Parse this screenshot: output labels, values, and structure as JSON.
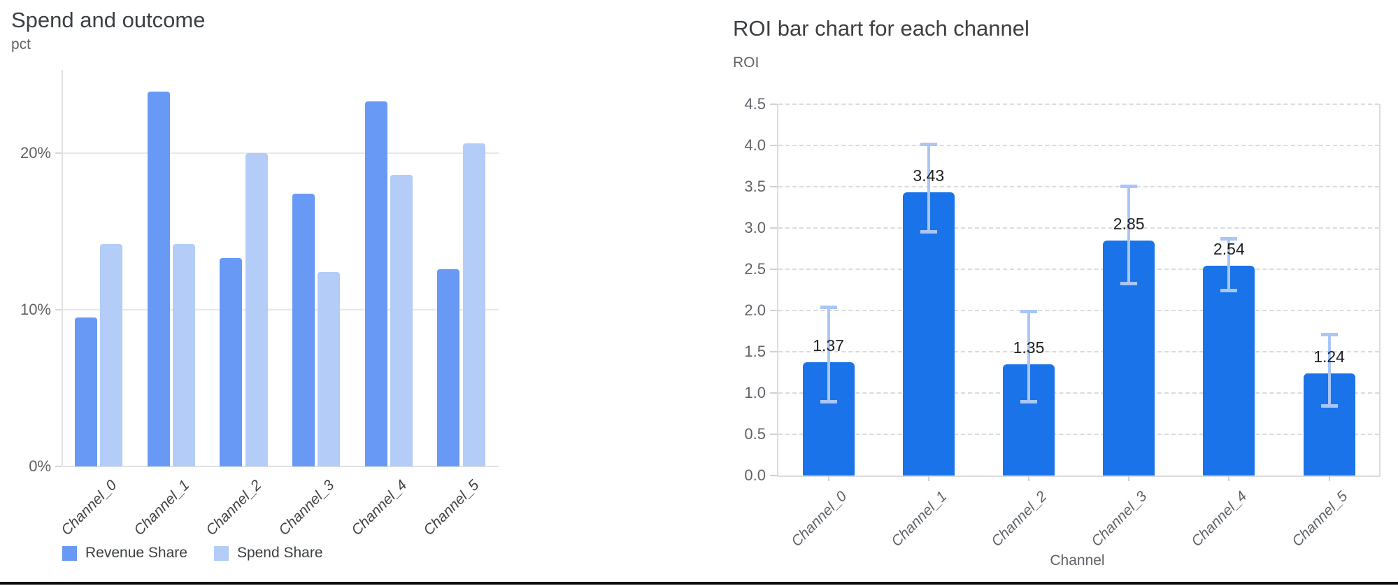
{
  "layout": {
    "background": "#ffffff",
    "bottom_divider_color": "#0c0c0c",
    "accent_blue_dark": "#1a73e8",
    "accent_blue_medium": "#6899f4",
    "accent_blue_light": "#b3ccf8",
    "error_bar_blue": "#a9c6f7"
  },
  "chart_data": [
    {
      "id": "spend-outcome",
      "type": "bar",
      "title": "Spend and outcome",
      "ylabel": "pct",
      "xlabel": "",
      "categories": [
        "Channel_0",
        "Channel_1",
        "Channel_2",
        "Channel_3",
        "Channel_4",
        "Channel_5"
      ],
      "series": [
        {
          "name": "Revenue Share",
          "color": "#6899f4",
          "values": [
            9.5,
            23.9,
            13.3,
            17.4,
            23.3,
            12.6
          ]
        },
        {
          "name": "Spend Share",
          "color": "#b3ccf8",
          "values": [
            14.2,
            14.2,
            20.0,
            12.4,
            18.6,
            20.6
          ]
        }
      ],
      "value_format": "percent",
      "yticks": [
        {
          "value": 0,
          "label": "0%"
        },
        {
          "value": 10,
          "label": "10%"
        },
        {
          "value": 20,
          "label": "20%"
        }
      ],
      "ylim": [
        0,
        25.3
      ],
      "grid": "solid-horizontal",
      "legend_position": "bottom-left"
    },
    {
      "id": "roi-by-channel",
      "type": "bar",
      "title": "ROI bar chart for each channel",
      "ylabel": "ROI",
      "xlabel": "Channel",
      "categories": [
        "Channel_0",
        "Channel_1",
        "Channel_2",
        "Channel_3",
        "Channel_4",
        "Channel_5"
      ],
      "values": [
        1.37,
        3.43,
        1.35,
        2.85,
        2.54,
        1.24
      ],
      "data_labels": [
        "1.37",
        "3.43",
        "1.35",
        "2.85",
        "2.54",
        "1.24"
      ],
      "bar_color": "#1a73e8",
      "error_bars": {
        "color": "#a9c6f7",
        "low": [
          0.89,
          2.95,
          0.89,
          2.32,
          2.24,
          0.84
        ],
        "high": [
          2.04,
          4.02,
          1.99,
          3.51,
          2.87,
          1.71
        ]
      },
      "ylim": [
        0,
        4.5
      ],
      "ytick_step": 0.5,
      "grid": "dashed-horizontal",
      "legend_position": "none"
    }
  ]
}
